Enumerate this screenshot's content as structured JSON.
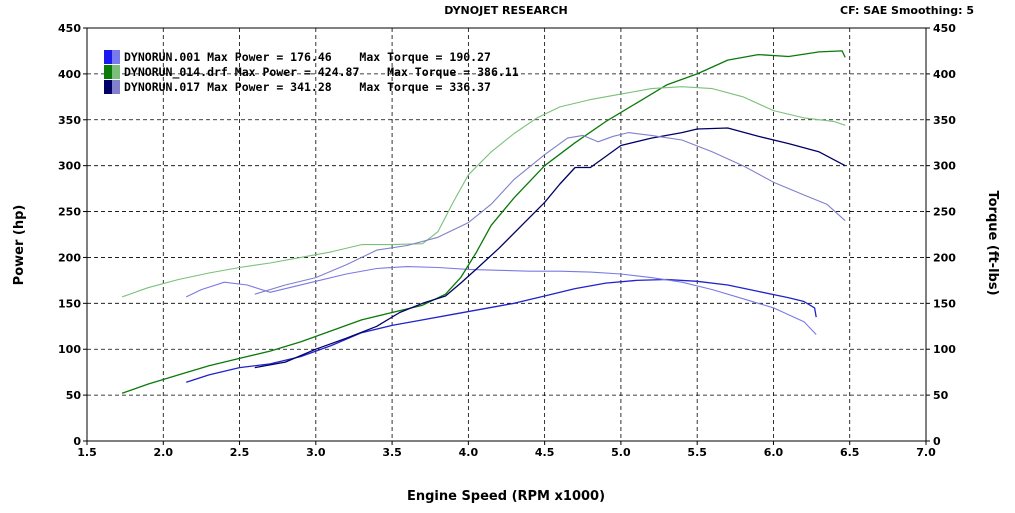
{
  "header": {
    "title": "DYNOJET RESEARCH",
    "settings": "CF: SAE  Smoothing: 5"
  },
  "chart_data": {
    "type": "line",
    "title": "DYNOJET RESEARCH",
    "xlabel": "Engine Speed (RPM x1000)",
    "ylabel": "Power (hp)",
    "y2label": "Torque (ft-lbs)",
    "xlim": [
      1.5,
      7.0
    ],
    "ylim": [
      0,
      450
    ],
    "y2lim": [
      0,
      450
    ],
    "xticks": [
      "1.5",
      "2.0",
      "2.5",
      "3.0",
      "3.5",
      "4.0",
      "4.5",
      "5.0",
      "5.5",
      "6.0",
      "6.5",
      "7.0"
    ],
    "yticks": [
      "0",
      "50",
      "100",
      "150",
      "200",
      "250",
      "300",
      "350",
      "400",
      "450"
    ],
    "y2ticks": [
      "0",
      "50",
      "100",
      "150",
      "200",
      "250",
      "300",
      "350",
      "400",
      "450"
    ],
    "grid": true,
    "legend_position": "top-left",
    "legend": [
      {
        "label": "DYNORUN.001 Max Power = 176.46    Max Torque = 190.27",
        "power_color": "#1a1aee",
        "torque_color": "#7a7af0"
      },
      {
        "label": "DYNORUN_014.drf Max Power = 424.87    Max Torque = 386.11",
        "power_color": "#0a7a0a",
        "torque_color": "#7ac07a"
      },
      {
        "label": "DYNORUN.017 Max Power = 341.28    Max Torque = 336.37",
        "power_color": "#000066",
        "torque_color": "#8080cc"
      }
    ],
    "series": [
      {
        "name": "DYNORUN.001 Power",
        "color": "#2222cc",
        "width": 1.3,
        "points": [
          [
            2.15,
            64
          ],
          [
            2.3,
            72
          ],
          [
            2.5,
            80
          ],
          [
            2.7,
            84
          ],
          [
            2.9,
            92
          ],
          [
            3.1,
            104
          ],
          [
            3.3,
            118
          ],
          [
            3.5,
            126
          ],
          [
            3.7,
            132
          ],
          [
            3.9,
            138
          ],
          [
            4.1,
            144
          ],
          [
            4.3,
            150
          ],
          [
            4.5,
            158
          ],
          [
            4.7,
            166
          ],
          [
            4.9,
            172
          ],
          [
            5.1,
            175
          ],
          [
            5.3,
            176
          ],
          [
            5.5,
            174
          ],
          [
            5.7,
            170
          ],
          [
            5.9,
            163
          ],
          [
            6.1,
            156
          ],
          [
            6.2,
            152
          ],
          [
            6.27,
            145
          ],
          [
            6.28,
            135
          ]
        ]
      },
      {
        "name": "DYNORUN.001 Torque",
        "color": "#7a7ae6",
        "width": 1.1,
        "points": [
          [
            2.15,
            157
          ],
          [
            2.25,
            165
          ],
          [
            2.4,
            173
          ],
          [
            2.55,
            170
          ],
          [
            2.7,
            162
          ],
          [
            2.85,
            168
          ],
          [
            3.0,
            174
          ],
          [
            3.2,
            182
          ],
          [
            3.4,
            188
          ],
          [
            3.6,
            190
          ],
          [
            3.8,
            189
          ],
          [
            4.0,
            187
          ],
          [
            4.2,
            186
          ],
          [
            4.4,
            185
          ],
          [
            4.6,
            185
          ],
          [
            4.8,
            184
          ],
          [
            5.0,
            182
          ],
          [
            5.2,
            178
          ],
          [
            5.4,
            173
          ],
          [
            5.6,
            165
          ],
          [
            5.8,
            155
          ],
          [
            6.0,
            145
          ],
          [
            6.2,
            130
          ],
          [
            6.28,
            116
          ]
        ]
      },
      {
        "name": "DYNORUN_014.drf Power",
        "color": "#0a7a0a",
        "width": 1.3,
        "points": [
          [
            1.73,
            52
          ],
          [
            1.9,
            62
          ],
          [
            2.1,
            72
          ],
          [
            2.3,
            82
          ],
          [
            2.5,
            90
          ],
          [
            2.7,
            98
          ],
          [
            2.9,
            108
          ],
          [
            3.1,
            120
          ],
          [
            3.3,
            132
          ],
          [
            3.5,
            140
          ],
          [
            3.7,
            148
          ],
          [
            3.85,
            160
          ],
          [
            3.95,
            178
          ],
          [
            4.05,
            205
          ],
          [
            4.15,
            235
          ],
          [
            4.3,
            265
          ],
          [
            4.5,
            300
          ],
          [
            4.7,
            325
          ],
          [
            4.9,
            348
          ],
          [
            5.1,
            368
          ],
          [
            5.3,
            388
          ],
          [
            5.5,
            400
          ],
          [
            5.7,
            415
          ],
          [
            5.9,
            421
          ],
          [
            6.1,
            419
          ],
          [
            6.3,
            424
          ],
          [
            6.45,
            425
          ],
          [
            6.47,
            418
          ]
        ]
      },
      {
        "name": "DYNORUN_014.drf Torque",
        "color": "#7ac07a",
        "width": 1.1,
        "points": [
          [
            1.73,
            157
          ],
          [
            1.9,
            167
          ],
          [
            2.1,
            176
          ],
          [
            2.3,
            183
          ],
          [
            2.5,
            189
          ],
          [
            2.7,
            194
          ],
          [
            2.9,
            200
          ],
          [
            3.1,
            206
          ],
          [
            3.3,
            214
          ],
          [
            3.5,
            214
          ],
          [
            3.7,
            215
          ],
          [
            3.8,
            228
          ],
          [
            3.9,
            260
          ],
          [
            4.0,
            290
          ],
          [
            4.15,
            315
          ],
          [
            4.3,
            335
          ],
          [
            4.45,
            352
          ],
          [
            4.6,
            364
          ],
          [
            4.8,
            372
          ],
          [
            5.0,
            378
          ],
          [
            5.2,
            384
          ],
          [
            5.4,
            386
          ],
          [
            5.6,
            384
          ],
          [
            5.8,
            375
          ],
          [
            6.0,
            360
          ],
          [
            6.2,
            352
          ],
          [
            6.4,
            348
          ],
          [
            6.47,
            344
          ]
        ]
      },
      {
        "name": "DYNORUN.017 Power",
        "color": "#000066",
        "width": 1.3,
        "points": [
          [
            2.6,
            80
          ],
          [
            2.8,
            86
          ],
          [
            3.0,
            100
          ],
          [
            3.2,
            112
          ],
          [
            3.4,
            125
          ],
          [
            3.55,
            140
          ],
          [
            3.7,
            150
          ],
          [
            3.85,
            158
          ],
          [
            3.95,
            172
          ],
          [
            4.05,
            187
          ],
          [
            4.2,
            210
          ],
          [
            4.35,
            235
          ],
          [
            4.5,
            260
          ],
          [
            4.6,
            280
          ],
          [
            4.7,
            298
          ],
          [
            4.8,
            298
          ],
          [
            4.9,
            310
          ],
          [
            5.0,
            322
          ],
          [
            5.2,
            330
          ],
          [
            5.4,
            336
          ],
          [
            5.5,
            340
          ],
          [
            5.7,
            341
          ],
          [
            5.9,
            332
          ],
          [
            6.1,
            324
          ],
          [
            6.3,
            315
          ],
          [
            6.47,
            300
          ]
        ]
      },
      {
        "name": "DYNORUN.017 Torque",
        "color": "#8080cc",
        "width": 1.1,
        "points": [
          [
            2.6,
            160
          ],
          [
            2.8,
            170
          ],
          [
            3.0,
            178
          ],
          [
            3.2,
            192
          ],
          [
            3.4,
            208
          ],
          [
            3.6,
            213
          ],
          [
            3.8,
            222
          ],
          [
            4.0,
            238
          ],
          [
            4.15,
            258
          ],
          [
            4.3,
            285
          ],
          [
            4.5,
            312
          ],
          [
            4.65,
            330
          ],
          [
            4.75,
            333
          ],
          [
            4.85,
            326
          ],
          [
            4.95,
            332
          ],
          [
            5.05,
            336
          ],
          [
            5.2,
            333
          ],
          [
            5.4,
            328
          ],
          [
            5.6,
            315
          ],
          [
            5.8,
            300
          ],
          [
            6.0,
            282
          ],
          [
            6.2,
            268
          ],
          [
            6.35,
            258
          ],
          [
            6.47,
            240
          ]
        ]
      }
    ]
  }
}
